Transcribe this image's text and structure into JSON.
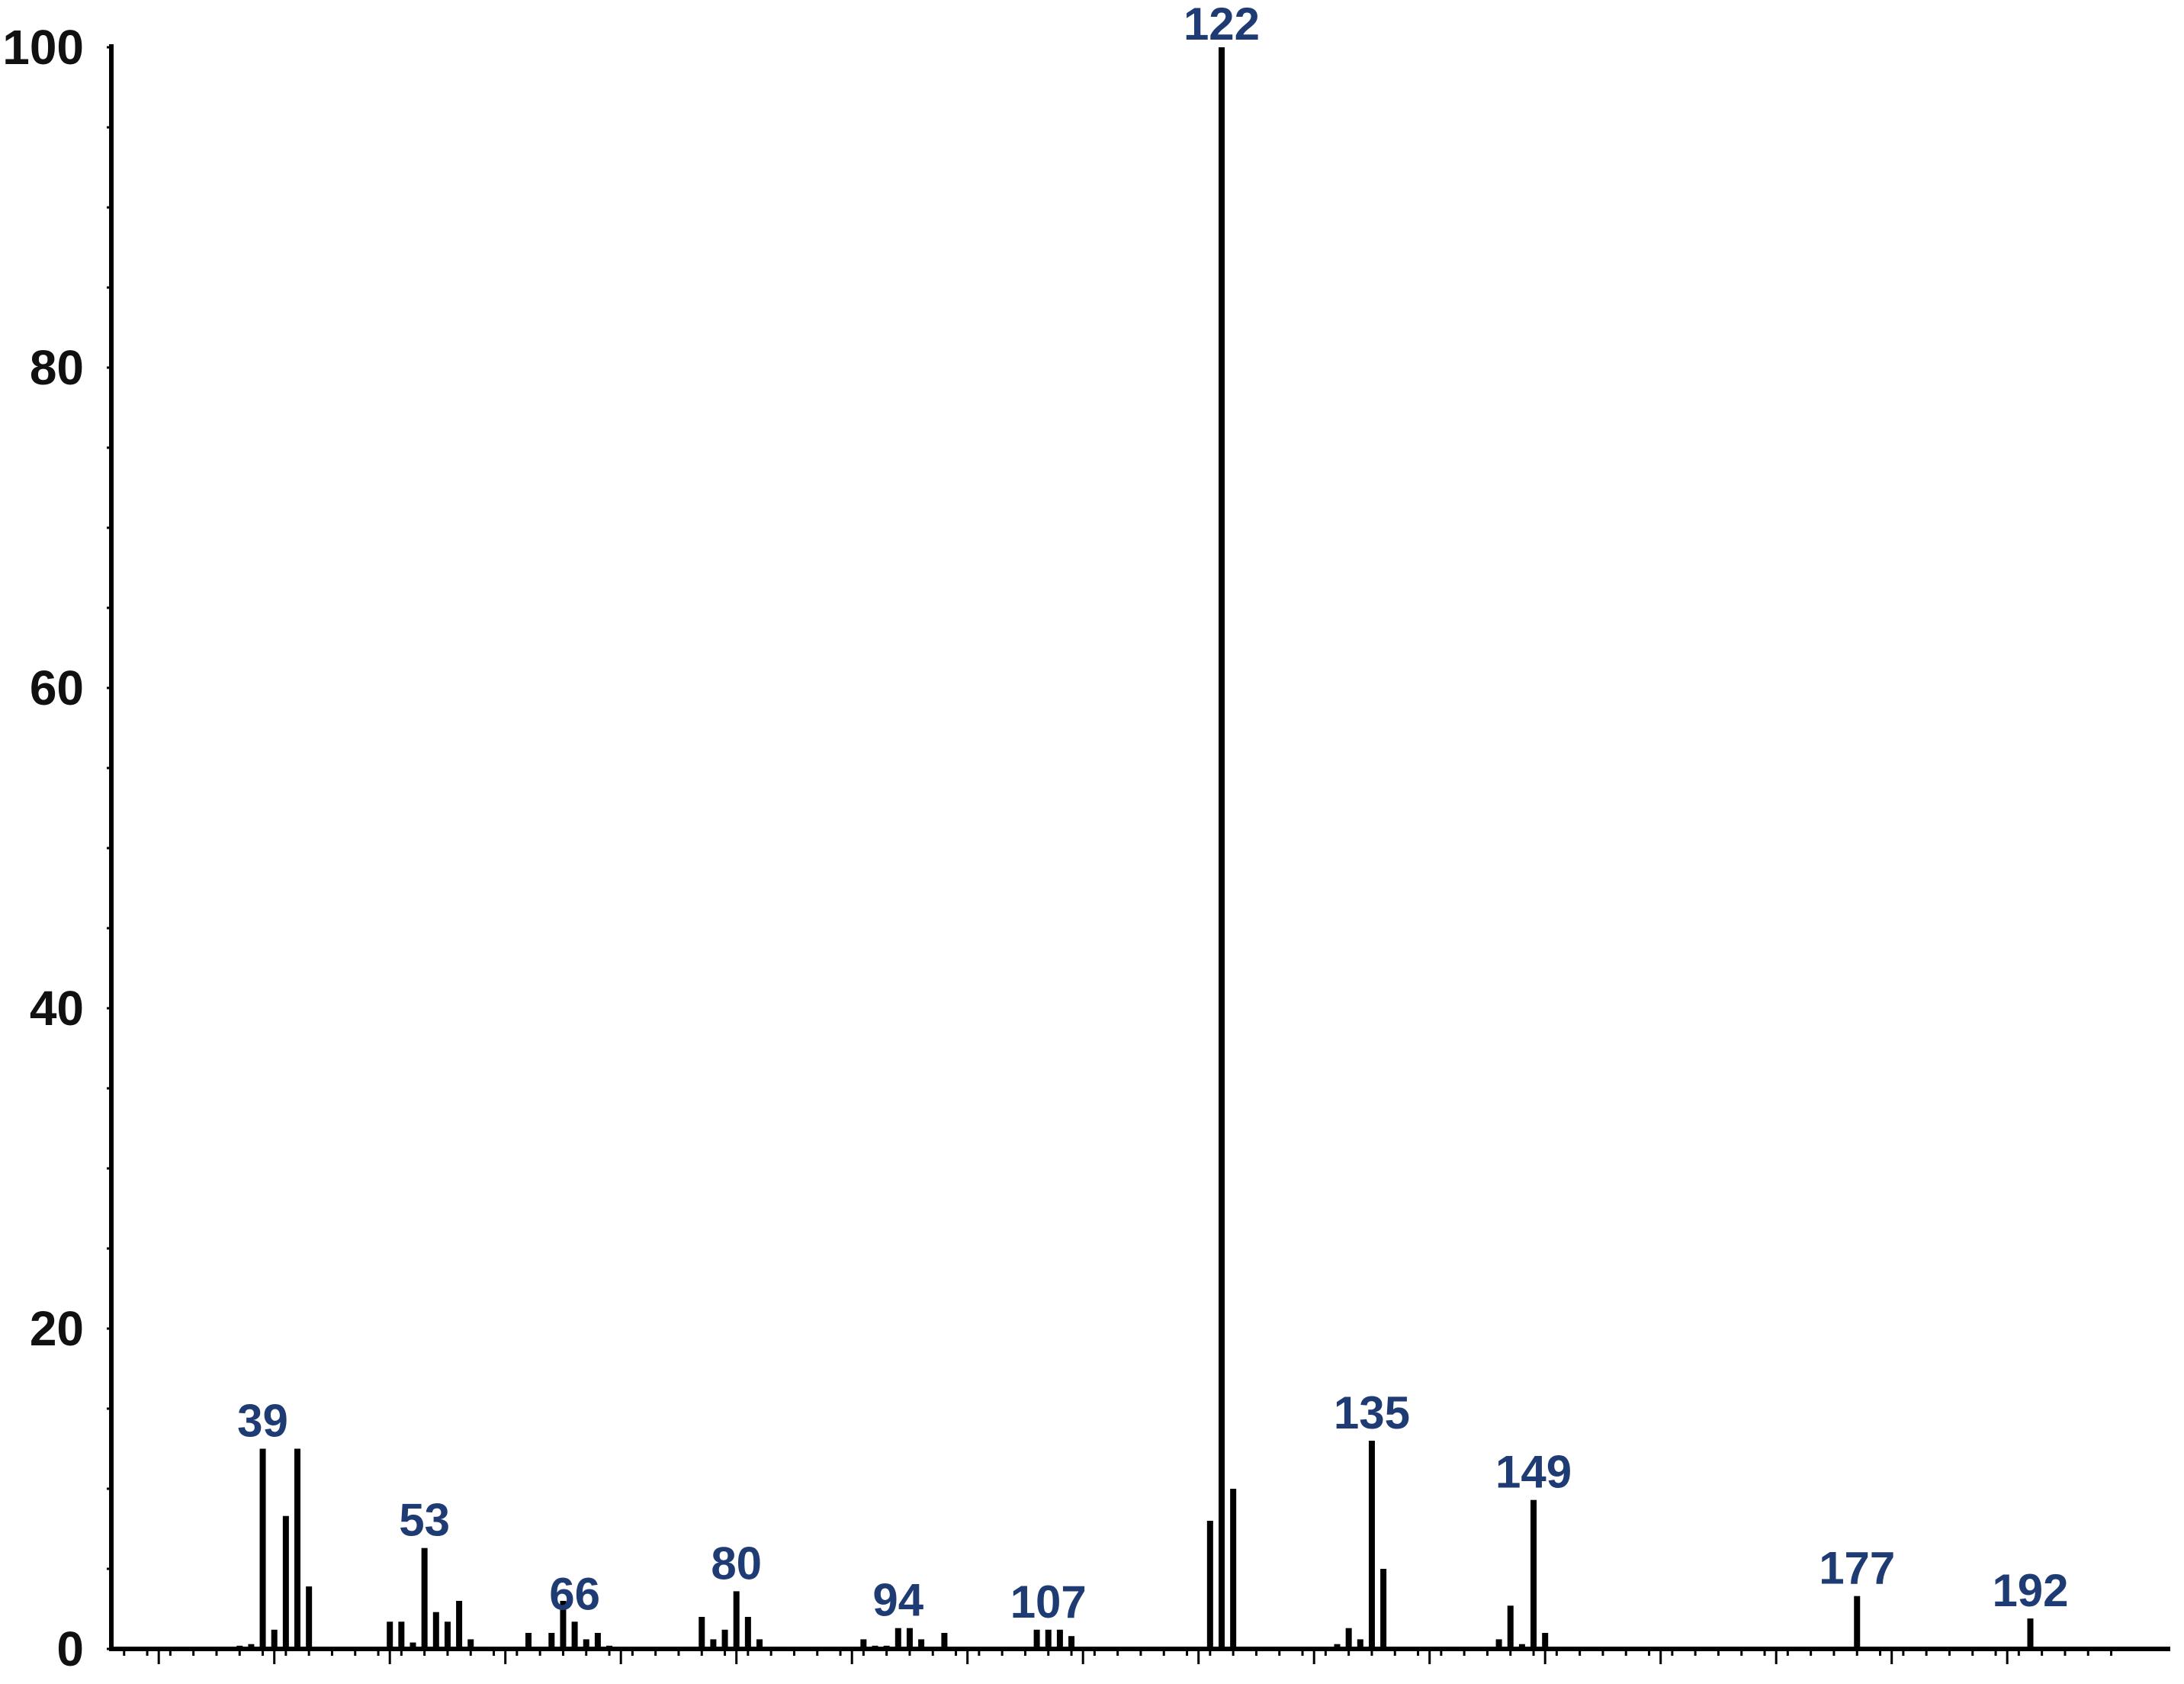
{
  "chart_data": {
    "type": "bar",
    "title": "",
    "xlabel": "",
    "ylabel": "",
    "xlim": [
      25,
      200
    ],
    "ylim": [
      0,
      100
    ],
    "yticks": [
      0,
      20,
      40,
      60,
      80,
      100
    ],
    "ytick_labels": [
      "0",
      "20",
      "40",
      "60",
      "80",
      "100"
    ],
    "x_major_ticks": [
      30,
      40,
      50,
      60,
      70,
      80,
      90,
      100,
      110,
      120,
      130,
      140,
      150,
      160,
      170,
      180,
      190
    ],
    "grid": false,
    "legend": "none",
    "bar_color": "#000000",
    "label_color": "#1f3b73",
    "series": [
      {
        "x": [
          37,
          38,
          39,
          40,
          41,
          42,
          43,
          50,
          51,
          52,
          53,
          54,
          55,
          56,
          57,
          62,
          64,
          65,
          66,
          67,
          68,
          69,
          77,
          78,
          79,
          80,
          81,
          82,
          91,
          92,
          93,
          94,
          95,
          96,
          98,
          106,
          107,
          108,
          109,
          121,
          122,
          123,
          132,
          133,
          134,
          135,
          136,
          146,
          147,
          148,
          149,
          150,
          177,
          192
        ],
        "values": [
          0.2,
          0.3,
          12.5,
          1.2,
          8.3,
          12.5,
          3.9,
          1.7,
          1.7,
          0.4,
          6.3,
          2.3,
          1.7,
          3.0,
          0.6,
          1.0,
          1.0,
          3.0,
          1.7,
          0.6,
          1.0,
          0.2,
          2.0,
          0.6,
          1.2,
          3.6,
          2.0,
          0.6,
          0.6,
          0.2,
          0.2,
          1.3,
          1.3,
          0.6,
          1.0,
          1.2,
          1.2,
          1.2,
          0.8,
          8.0,
          100,
          10.0,
          0.3,
          1.3,
          0.6,
          13.0,
          5.0,
          0.6,
          2.7,
          0.3,
          9.3,
          1.0,
          3.3,
          1.9
        ]
      }
    ],
    "annotations": [
      {
        "x": 39,
        "label": "39"
      },
      {
        "x": 53,
        "label": "53"
      },
      {
        "x": 66,
        "label": "66"
      },
      {
        "x": 80,
        "label": "80"
      },
      {
        "x": 94,
        "label": "94"
      },
      {
        "x": 107,
        "label": "107"
      },
      {
        "x": 122,
        "label": "122"
      },
      {
        "x": 135,
        "label": "135"
      },
      {
        "x": 149,
        "label": "149"
      },
      {
        "x": 177,
        "label": "177"
      },
      {
        "x": 192,
        "label": "192"
      }
    ]
  }
}
